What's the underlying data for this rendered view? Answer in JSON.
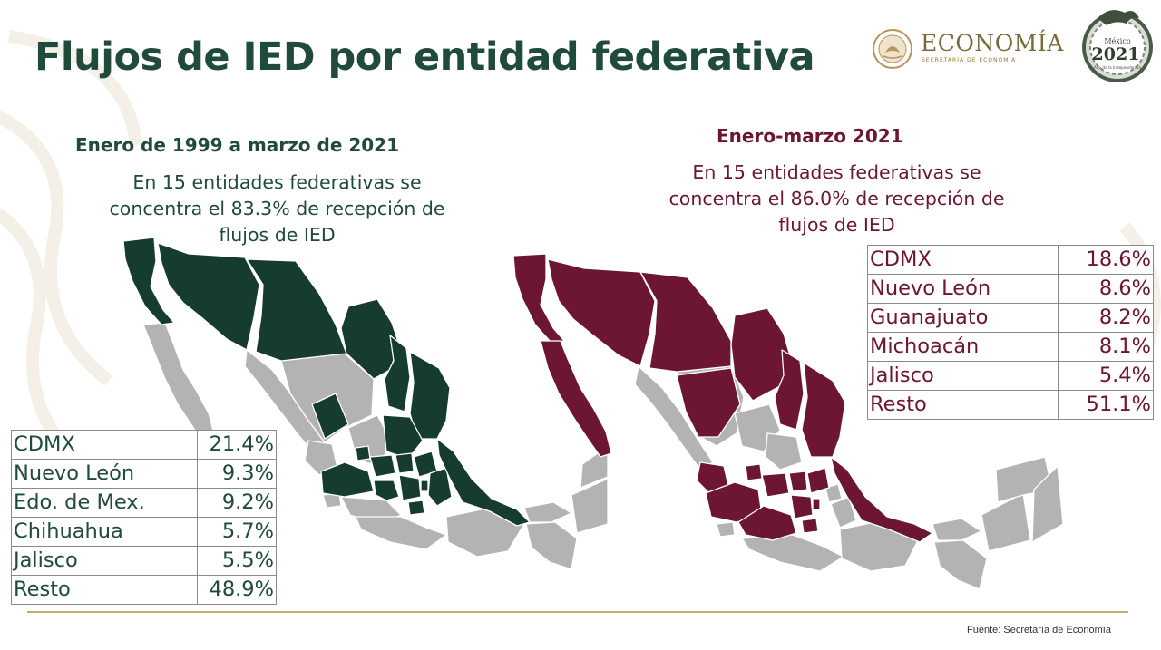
{
  "title": "Flujos de IED por entidad federativa",
  "logo": {
    "name": "ECONOMÍA",
    "subtitle": "SECRETARÍA DE ECONOMÍA"
  },
  "emblem": {
    "line1": "México",
    "line2": "2021",
    "line3": "Año de la Independencia"
  },
  "left_panel": {
    "subtitle": "Enero de 1999 a marzo de 2021",
    "description": [
      "En 15 entidades federativas se",
      "concentra el 83.3% de recepción de",
      "flujos de IED"
    ],
    "table": [
      {
        "entity": "CDMX",
        "value": "21.4%"
      },
      {
        "entity": "Nuevo León",
        "value": "9.3%"
      },
      {
        "entity": "Edo. de Mex.",
        "value": "9.2%"
      },
      {
        "entity": "Chihuahua",
        "value": "5.7%"
      },
      {
        "entity": "Jalisco",
        "value": "5.5%"
      },
      {
        "entity": "Resto",
        "value": "48.9%"
      }
    ],
    "highlight_color": "#163b30"
  },
  "right_panel": {
    "subtitle": "Enero-marzo 2021",
    "description": [
      "En 15 entidades federativas se",
      "concentra el 86.0% de recepción de",
      "flujos de IED"
    ],
    "table": [
      {
        "entity": "CDMX",
        "value": "18.6%"
      },
      {
        "entity": "Nuevo León",
        "value": "8.6%"
      },
      {
        "entity": "Guanajuato",
        "value": "8.2%"
      },
      {
        "entity": "Michoacán",
        "value": "8.1%"
      },
      {
        "entity": "Jalisco",
        "value": "5.4%"
      },
      {
        "entity": "Resto",
        "value": "51.1%"
      }
    ],
    "highlight_color": "#6c1631"
  },
  "colors": {
    "title": "#1f4a3c",
    "right_text": "#6c1631",
    "left_text": "#1f4a3c",
    "map_grey": "#b3b3b3",
    "footer_line": "#c9a96a"
  },
  "source": "Fuente: Secretaría de Economía"
}
